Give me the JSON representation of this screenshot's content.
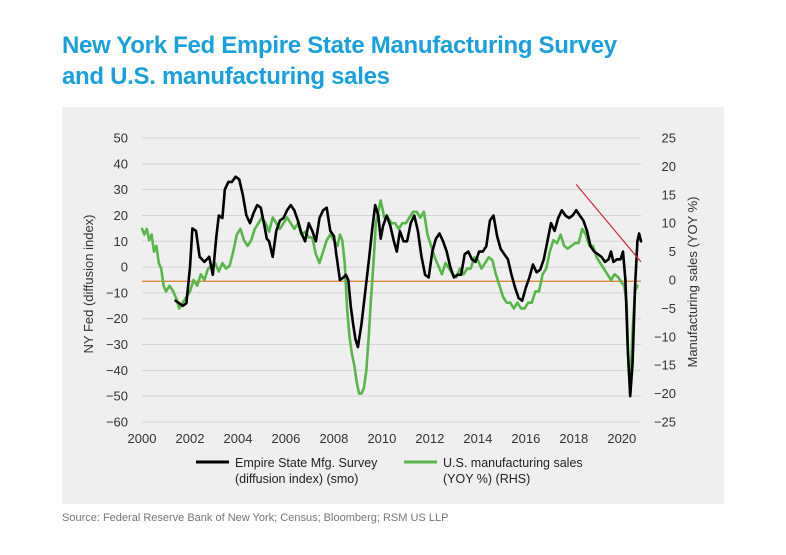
{
  "title_line1": "New York Fed Empire State Manufacturing Survey",
  "title_line2": "and U.S. manufacturing sales",
  "source": "Source: Federal Reserve Bank of New York; Census; Bloomberg; RSM US LLP",
  "chart_data": {
    "type": "line",
    "ylabel": "NY Fed (diffusion index)",
    "ylabel_right": "Manufacturing sales (YOY %)",
    "xlim": [
      2000,
      2020.8
    ],
    "ylim": [
      -60,
      50
    ],
    "ylim_right": [
      -25,
      25
    ],
    "x_ticks": [
      "2000",
      "2002",
      "2004",
      "2006",
      "2008",
      "2010",
      "2012",
      "2014",
      "2016",
      "2018",
      "2020"
    ],
    "y_ticks": [
      "50",
      "40",
      "30",
      "20",
      "10",
      "0",
      "-10",
      "-20",
      "-30",
      "-40",
      "-50",
      "-60"
    ],
    "y_ticks_right": [
      "25",
      "20",
      "15",
      "10",
      "5",
      "0",
      "-5",
      "-10",
      "-15",
      "-20",
      "-25"
    ],
    "grid": true,
    "legend_position": "bottom",
    "reference_line": {
      "axis": "left",
      "y": -5.5,
      "color": "#d9893e"
    },
    "trend_line": {
      "color": "#d6283d",
      "x": [
        2018.1,
        2020.8
      ],
      "y": [
        32,
        2
      ]
    },
    "series": [
      {
        "name": "Empire State Mfg. Survey (diffusion index) (smo)",
        "legend_line1": "Empire State Mfg. Survey",
        "legend_line2": "(diffusion index) (smo)",
        "axis": "left",
        "color": "#000000",
        "points": [
          [
            2001.4,
            -13
          ],
          [
            2001.7,
            -15
          ],
          [
            2001.85,
            -14
          ],
          [
            2002.0,
            0
          ],
          [
            2002.1,
            15
          ],
          [
            2002.25,
            14
          ],
          [
            2002.4,
            4
          ],
          [
            2002.6,
            2
          ],
          [
            2002.8,
            4
          ],
          [
            2002.95,
            -3
          ],
          [
            2003.1,
            12
          ],
          [
            2003.2,
            20
          ],
          [
            2003.35,
            19
          ],
          [
            2003.45,
            30
          ],
          [
            2003.6,
            33
          ],
          [
            2003.75,
            33
          ],
          [
            2003.9,
            35
          ],
          [
            2004.05,
            34
          ],
          [
            2004.2,
            28
          ],
          [
            2004.35,
            20
          ],
          [
            2004.5,
            17
          ],
          [
            2004.65,
            21
          ],
          [
            2004.8,
            24
          ],
          [
            2004.95,
            23
          ],
          [
            2005.1,
            16
          ],
          [
            2005.2,
            11
          ],
          [
            2005.3,
            10
          ],
          [
            2005.45,
            4
          ],
          [
            2005.6,
            14
          ],
          [
            2005.75,
            18
          ],
          [
            2005.9,
            19
          ],
          [
            2006.05,
            22
          ],
          [
            2006.2,
            24
          ],
          [
            2006.35,
            22
          ],
          [
            2006.5,
            18
          ],
          [
            2006.65,
            13
          ],
          [
            2006.8,
            10
          ],
          [
            2006.95,
            17
          ],
          [
            2007.1,
            14
          ],
          [
            2007.25,
            10
          ],
          [
            2007.4,
            19
          ],
          [
            2007.55,
            22
          ],
          [
            2007.7,
            23
          ],
          [
            2007.85,
            14
          ],
          [
            2008.0,
            12
          ],
          [
            2008.1,
            5
          ],
          [
            2008.25,
            -5
          ],
          [
            2008.4,
            -4
          ],
          [
            2008.5,
            -3
          ],
          [
            2008.6,
            -5
          ],
          [
            2008.7,
            -15
          ],
          [
            2008.8,
            -22
          ],
          [
            2008.9,
            -28
          ],
          [
            2009.0,
            -31
          ],
          [
            2009.15,
            -22
          ],
          [
            2009.3,
            -10
          ],
          [
            2009.45,
            2
          ],
          [
            2009.6,
            15
          ],
          [
            2009.72,
            24
          ],
          [
            2009.85,
            20
          ],
          [
            2009.95,
            11
          ],
          [
            2010.05,
            16
          ],
          [
            2010.2,
            20
          ],
          [
            2010.35,
            16
          ],
          [
            2010.5,
            10
          ],
          [
            2010.62,
            6
          ],
          [
            2010.75,
            14
          ],
          [
            2010.9,
            10
          ],
          [
            2011.05,
            10
          ],
          [
            2011.2,
            17
          ],
          [
            2011.35,
            20
          ],
          [
            2011.5,
            14
          ],
          [
            2011.65,
            4
          ],
          [
            2011.8,
            -3
          ],
          [
            2011.95,
            -4
          ],
          [
            2012.1,
            6
          ],
          [
            2012.25,
            11
          ],
          [
            2012.4,
            13
          ],
          [
            2012.55,
            10
          ],
          [
            2012.7,
            6
          ],
          [
            2012.85,
            0
          ],
          [
            2013.0,
            -4
          ],
          [
            2013.15,
            -3
          ],
          [
            2013.3,
            -3
          ],
          [
            2013.45,
            5
          ],
          [
            2013.6,
            6
          ],
          [
            2013.75,
            3
          ],
          [
            2013.9,
            2
          ],
          [
            2014.05,
            6
          ],
          [
            2014.2,
            6
          ],
          [
            2014.35,
            8
          ],
          [
            2014.5,
            18
          ],
          [
            2014.65,
            20
          ],
          [
            2014.8,
            12
          ],
          [
            2014.95,
            7
          ],
          [
            2015.1,
            5
          ],
          [
            2015.25,
            3
          ],
          [
            2015.4,
            -3
          ],
          [
            2015.55,
            -8
          ],
          [
            2015.7,
            -12
          ],
          [
            2015.85,
            -13
          ],
          [
            2016.0,
            -8
          ],
          [
            2016.15,
            -4
          ],
          [
            2016.3,
            1
          ],
          [
            2016.45,
            -2
          ],
          [
            2016.6,
            -1
          ],
          [
            2016.75,
            3
          ],
          [
            2016.9,
            10
          ],
          [
            2017.05,
            17
          ],
          [
            2017.2,
            14
          ],
          [
            2017.35,
            19
          ],
          [
            2017.5,
            22
          ],
          [
            2017.65,
            20
          ],
          [
            2017.8,
            19
          ],
          [
            2017.95,
            20
          ],
          [
            2018.1,
            22
          ],
          [
            2018.25,
            20
          ],
          [
            2018.4,
            18
          ],
          [
            2018.55,
            14
          ],
          [
            2018.7,
            8
          ],
          [
            2018.85,
            6
          ],
          [
            2019.0,
            5
          ],
          [
            2019.15,
            4
          ],
          [
            2019.3,
            2
          ],
          [
            2019.45,
            3
          ],
          [
            2019.55,
            6
          ],
          [
            2019.65,
            2
          ],
          [
            2019.8,
            3
          ],
          [
            2019.95,
            3
          ],
          [
            2020.05,
            6
          ],
          [
            2020.15,
            -5
          ],
          [
            2020.25,
            -32
          ],
          [
            2020.35,
            -50
          ],
          [
            2020.45,
            -37
          ],
          [
            2020.55,
            -8
          ],
          [
            2020.65,
            10
          ],
          [
            2020.72,
            13
          ],
          [
            2020.8,
            10
          ]
        ]
      },
      {
        "name": "U.S. manufacturing sales (YOY %) (RHS)",
        "legend_line1": "U.S. manufacturing sales",
        "legend_line2": "(YOY %) (RHS)",
        "axis": "right",
        "color": "#59b64a",
        "points": [
          [
            2000.0,
            9
          ],
          [
            2000.1,
            8
          ],
          [
            2000.2,
            9
          ],
          [
            2000.3,
            7
          ],
          [
            2000.4,
            8
          ],
          [
            2000.5,
            5
          ],
          [
            2000.6,
            6
          ],
          [
            2000.7,
            3
          ],
          [
            2000.8,
            2
          ],
          [
            2000.9,
            -1
          ],
          [
            2001.0,
            -2
          ],
          [
            2001.15,
            -1
          ],
          [
            2001.3,
            -2
          ],
          [
            2001.45,
            -3.5
          ],
          [
            2001.55,
            -5
          ],
          [
            2001.7,
            -4
          ],
          [
            2001.85,
            -3
          ],
          [
            2002.0,
            -2
          ],
          [
            2002.15,
            0
          ],
          [
            2002.3,
            -1
          ],
          [
            2002.45,
            1
          ],
          [
            2002.6,
            0
          ],
          [
            2002.75,
            2
          ],
          [
            2002.9,
            2.5
          ],
          [
            2003.05,
            3
          ],
          [
            2003.2,
            1.5
          ],
          [
            2003.35,
            3
          ],
          [
            2003.5,
            2
          ],
          [
            2003.65,
            2.5
          ],
          [
            2003.8,
            5
          ],
          [
            2003.95,
            8
          ],
          [
            2004.1,
            9
          ],
          [
            2004.25,
            7
          ],
          [
            2004.4,
            6
          ],
          [
            2004.55,
            7
          ],
          [
            2004.7,
            9
          ],
          [
            2004.85,
            10
          ],
          [
            2005.0,
            11
          ],
          [
            2005.15,
            10
          ],
          [
            2005.3,
            8.5
          ],
          [
            2005.45,
            11
          ],
          [
            2005.6,
            10
          ],
          [
            2005.75,
            9
          ],
          [
            2005.9,
            10
          ],
          [
            2006.05,
            11
          ],
          [
            2006.2,
            10
          ],
          [
            2006.35,
            9
          ],
          [
            2006.5,
            10
          ],
          [
            2006.65,
            8
          ],
          [
            2006.8,
            8.5
          ],
          [
            2006.95,
            7.5
          ],
          [
            2007.1,
            7.5
          ],
          [
            2007.25,
            4.5
          ],
          [
            2007.4,
            3
          ],
          [
            2007.55,
            5
          ],
          [
            2007.7,
            7
          ],
          [
            2007.85,
            8
          ],
          [
            2008.0,
            7
          ],
          [
            2008.15,
            6
          ],
          [
            2008.25,
            8
          ],
          [
            2008.35,
            7
          ],
          [
            2008.45,
            3
          ],
          [
            2008.55,
            -5
          ],
          [
            2008.65,
            -10
          ],
          [
            2008.75,
            -13
          ],
          [
            2008.85,
            -15
          ],
          [
            2008.95,
            -18
          ],
          [
            2009.05,
            -20
          ],
          [
            2009.15,
            -20
          ],
          [
            2009.25,
            -19
          ],
          [
            2009.35,
            -16
          ],
          [
            2009.45,
            -10
          ],
          [
            2009.55,
            -3
          ],
          [
            2009.65,
            3
          ],
          [
            2009.75,
            10
          ],
          [
            2009.85,
            12
          ],
          [
            2009.95,
            14
          ],
          [
            2010.1,
            11
          ],
          [
            2010.25,
            11
          ],
          [
            2010.4,
            10
          ],
          [
            2010.55,
            10
          ],
          [
            2010.7,
            9
          ],
          [
            2010.85,
            10
          ],
          [
            2011.0,
            10
          ],
          [
            2011.15,
            11
          ],
          [
            2011.3,
            12
          ],
          [
            2011.45,
            12
          ],
          [
            2011.6,
            11
          ],
          [
            2011.75,
            12
          ],
          [
            2011.9,
            8
          ],
          [
            2012.05,
            6
          ],
          [
            2012.2,
            4
          ],
          [
            2012.35,
            2.5
          ],
          [
            2012.5,
            1
          ],
          [
            2012.65,
            3
          ],
          [
            2012.8,
            2
          ],
          [
            2012.95,
            1
          ],
          [
            2013.1,
            0.5
          ],
          [
            2013.25,
            2
          ],
          [
            2013.4,
            1
          ],
          [
            2013.55,
            2
          ],
          [
            2013.7,
            2
          ],
          [
            2013.85,
            4
          ],
          [
            2014.0,
            3.5
          ],
          [
            2014.15,
            2
          ],
          [
            2014.3,
            3
          ],
          [
            2014.45,
            4
          ],
          [
            2014.6,
            3.5
          ],
          [
            2014.75,
            1
          ],
          [
            2014.9,
            -1
          ],
          [
            2015.05,
            -3
          ],
          [
            2015.2,
            -4
          ],
          [
            2015.35,
            -4
          ],
          [
            2015.5,
            -5
          ],
          [
            2015.65,
            -4
          ],
          [
            2015.8,
            -5
          ],
          [
            2015.95,
            -5
          ],
          [
            2016.1,
            -4
          ],
          [
            2016.25,
            -4
          ],
          [
            2016.4,
            -2
          ],
          [
            2016.55,
            -2
          ],
          [
            2016.7,
            1
          ],
          [
            2016.85,
            2
          ],
          [
            2017.0,
            5
          ],
          [
            2017.15,
            7
          ],
          [
            2017.3,
            6.5
          ],
          [
            2017.45,
            8
          ],
          [
            2017.6,
            6
          ],
          [
            2017.75,
            5.5
          ],
          [
            2017.9,
            6
          ],
          [
            2018.05,
            6.5
          ],
          [
            2018.2,
            6.5
          ],
          [
            2018.35,
            9
          ],
          [
            2018.5,
            8
          ],
          [
            2018.65,
            6
          ],
          [
            2018.8,
            6
          ],
          [
            2018.95,
            4
          ],
          [
            2019.1,
            3
          ],
          [
            2019.25,
            2
          ],
          [
            2019.4,
            1
          ],
          [
            2019.55,
            0
          ],
          [
            2019.7,
            1
          ],
          [
            2019.85,
            0.5
          ],
          [
            2020.0,
            -0.5
          ],
          [
            2020.1,
            -1
          ],
          [
            2020.2,
            -4
          ],
          [
            2020.28,
            -15
          ],
          [
            2020.33,
            -18
          ],
          [
            2020.38,
            -16
          ],
          [
            2020.45,
            -9
          ],
          [
            2020.55,
            -2
          ],
          [
            2020.65,
            -1
          ]
        ]
      }
    ]
  }
}
